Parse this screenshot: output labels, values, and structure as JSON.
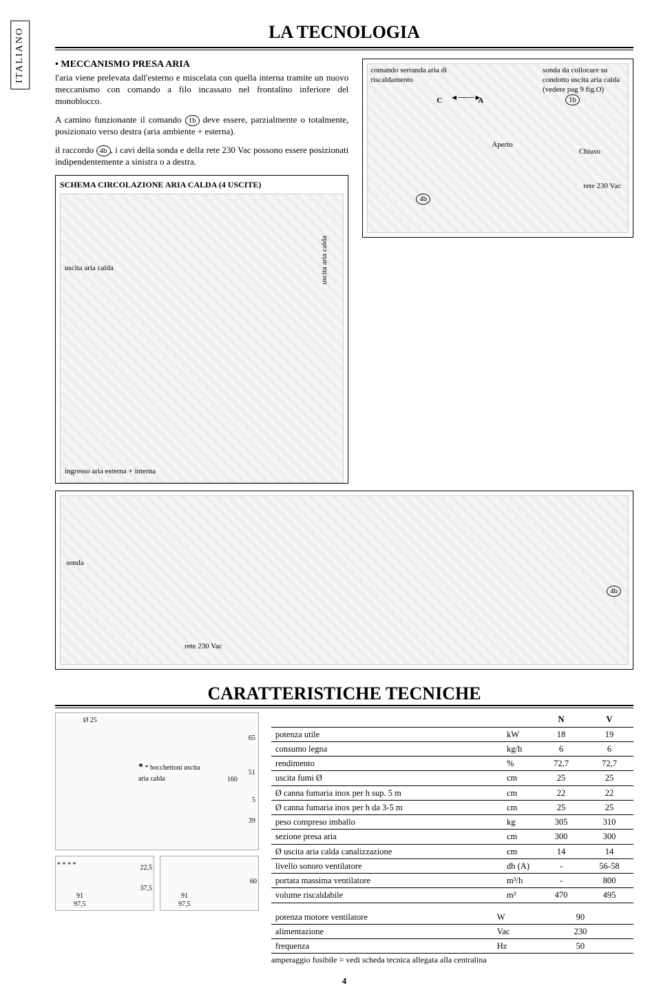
{
  "side_label": "ITALIANO",
  "title_tech": "LA TECNOLOGIA",
  "mech": {
    "heading": "• MECCANISMO PRESA ARIA",
    "p1": "l'aria viene prelevata dall'esterno e miscelata con quella interna tramite un nuovo meccanismo con comando a filo incassato nel frontalino inferiore del monoblocco.",
    "p2a": "A camino funzionante il comando ",
    "p2_ref": "1b",
    "p2b": " deve essere, parzialmente o totalmente, posizionato verso destra (aria ambiente + esterna).",
    "p3a": "il raccordo ",
    "p3_ref": "4b",
    "p3b": ", i cavi della sonda e della rete 230 Vac possono essere posizionati indipendentemente a sinistra o a destra."
  },
  "schema_title": "SCHEMA CIRCOLAZIONE ARIA CALDA (4 USCITE)",
  "schema_labels": {
    "uscita_left": "uscita aria calda",
    "uscita_vert": "uscita aria calda",
    "ingresso": "ingresso aria esterna + interna"
  },
  "fig1": {
    "top_left": "comando serranda aria di riscaldamento",
    "top_right": "sonda da collocare su condotto uscita aria calda (vedere pag 9 fig.O)",
    "c": "C",
    "a": "A",
    "ref_1b": "1b",
    "aperto": "Aperto",
    "chiuso": "Chiuso",
    "rete": "rete 230 Vac",
    "ref_4b": "4b"
  },
  "fig2": {
    "sonda": "sonda",
    "rete": "rete 230 Vac",
    "ref_4b": "4b"
  },
  "title_caratt": "CARATTERISTICHE TECNICHE",
  "drawings": {
    "d25": "Ø 25",
    "h65": "65",
    "h51": "51",
    "h5": "5",
    "h39": "39",
    "h160": "160",
    "h225": "22,5",
    "h375": "37,5",
    "h60": "60",
    "w91": "91",
    "w975": "97,5",
    "star_note": "* bocchettoni uscita aria calda"
  },
  "table": {
    "col_n": "N",
    "col_v": "V",
    "rows": [
      {
        "label": "potenza utile",
        "unit": "kW",
        "n": "18",
        "v": "19"
      },
      {
        "label": "consumo legna",
        "unit": "kg/h",
        "n": "6",
        "v": "6"
      },
      {
        "label": "rendimento",
        "unit": "%",
        "n": "72,7",
        "v": "72,7"
      },
      {
        "label": "uscita fumi Ø",
        "unit": "cm",
        "n": "25",
        "v": "25"
      },
      {
        "label": "Ø canna fumaria inox per h sup. 5 m",
        "unit": "cm",
        "n": "22",
        "v": "22"
      },
      {
        "label": "Ø canna fumaria inox per h da 3-5 m",
        "unit": "cm",
        "n": "25",
        "v": "25"
      },
      {
        "label": "peso compreso imballo",
        "unit": "kg",
        "n": "305",
        "v": "310"
      },
      {
        "label": "sezione presa aria",
        "unit": "cm",
        "n": "300",
        "v": "300"
      },
      {
        "label": "Ø uscita aria calda canalizzazione",
        "unit": "cm",
        "n": "14",
        "v": "14"
      },
      {
        "label": "livello sonoro ventilatore",
        "unit": "db (A)",
        "n": "-",
        "v": "56-58"
      },
      {
        "label": "portata massima ventilatore",
        "unit": "m³/h",
        "n": "-",
        "v": "800"
      },
      {
        "label": "volume riscaldabile",
        "unit": "m³",
        "n": "470",
        "v": "495"
      }
    ],
    "rows2": [
      {
        "label": "potenza motore ventilatore",
        "unit": "W",
        "val": "90"
      },
      {
        "label": "alimentazione",
        "unit": "Vac",
        "val": "230"
      },
      {
        "label": "frequenza",
        "unit": "Hz",
        "val": "50"
      }
    ],
    "footer": "amperaggio fusibile = vedi scheda tecnica allegata alla centralina"
  },
  "page_number": "4"
}
